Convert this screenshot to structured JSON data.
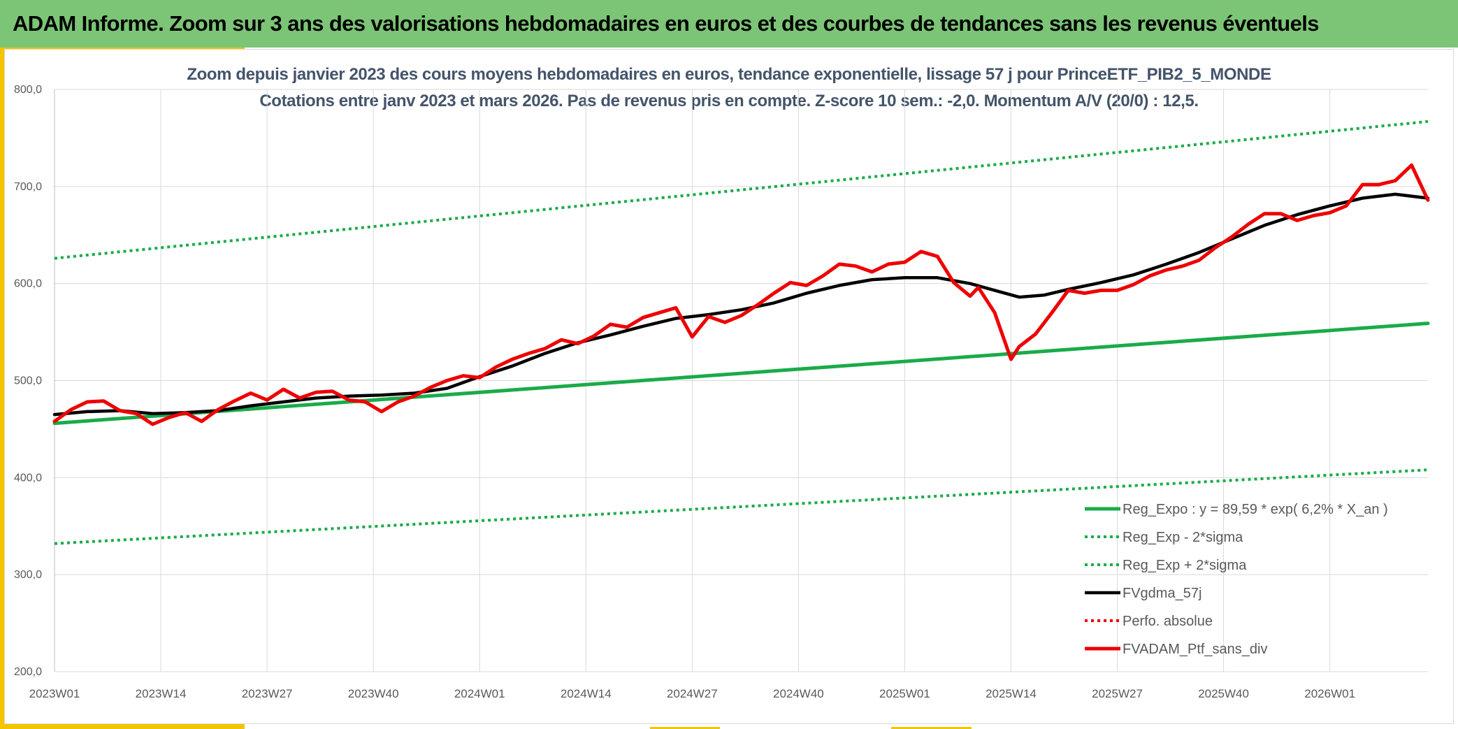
{
  "banner": {
    "title": "ADAM Informe. Zoom sur 3 ans des valorisations hebdomadaires en euros et des courbes de tendances sans les revenus éventuels"
  },
  "colors": {
    "banner_bg": "#7cc576",
    "accent": "#f4c400",
    "trend_green": "#1aab4a",
    "black": "#000000",
    "red": "#ee0000",
    "grid": "#d9d9d9",
    "title_text": "#44546a"
  },
  "chart_data": {
    "type": "line",
    "title": "Zoom depuis janvier 2023 des cours moyens hebdomadaires en euros, tendance exponentielle, lissage 57 j pour PrinceETF_PIB2_5_MONDE",
    "subtitle": "Cotations entre janv 2023 et mars 2026. Pas de revenus pris en compte. Z-score 10 sem.: -2,0. Momentum A/V (20/0) : 12,5.",
    "ylim": [
      200,
      800
    ],
    "y_ticks": [
      "200,0",
      "300,0",
      "400,0",
      "500,0",
      "600,0",
      "700,0",
      "800,0"
    ],
    "x_tick_labels": [
      "2023W01",
      "2023W14",
      "2023W27",
      "2023W40",
      "2024W01",
      "2024W14",
      "2024W27",
      "2024W40",
      "2025W01",
      "2025W14",
      "2025W27",
      "2025W40",
      "2026W01"
    ],
    "x_tick_index": [
      0,
      13,
      26,
      39,
      52,
      65,
      78,
      91,
      104,
      117,
      130,
      143,
      156
    ],
    "x_max_index": 168,
    "grid": true,
    "legend_position": "bottom-right",
    "series": [
      {
        "name": "Reg_Expo : y = 89,59 * exp( 6,2% *  X_an )",
        "style": "solid-green",
        "x": [
          0,
          168
        ],
        "y": [
          456,
          559
        ]
      },
      {
        "name": "Reg_Exp - 2*sigma",
        "style": "dotted-green",
        "x": [
          0,
          168
        ],
        "y": [
          332,
          408
        ]
      },
      {
        "name": "Reg_Exp + 2*sigma",
        "style": "dotted-green",
        "x": [
          0,
          168
        ],
        "y": [
          626,
          767
        ]
      },
      {
        "name": "FVgdma_57j",
        "style": "solid-black",
        "x": [
          0,
          4,
          8,
          12,
          16,
          20,
          24,
          28,
          32,
          36,
          40,
          44,
          48,
          52,
          56,
          60,
          64,
          68,
          72,
          76,
          80,
          84,
          88,
          92,
          96,
          100,
          104,
          108,
          112,
          115,
          118,
          121,
          124,
          128,
          132,
          136,
          140,
          144,
          148,
          152,
          156,
          160,
          164,
          168
        ],
        "y": [
          465,
          468,
          469,
          466,
          467,
          469,
          474,
          478,
          482,
          484,
          485,
          487,
          492,
          504,
          515,
          528,
          539,
          547,
          556,
          564,
          568,
          573,
          580,
          590,
          598,
          604,
          606,
          606,
          600,
          593,
          586,
          588,
          594,
          601,
          609,
          620,
          632,
          646,
          660,
          671,
          680,
          688,
          692,
          688
        ]
      },
      {
        "name": "Perfo. absolue",
        "style": "dotted-red",
        "x": [],
        "y": []
      },
      {
        "name": "FVADAM_Ptf_sans_div",
        "style": "solid-red",
        "x": [
          0,
          2,
          4,
          6,
          8,
          10,
          12,
          14,
          16,
          18,
          20,
          22,
          24,
          26,
          28,
          30,
          32,
          34,
          36,
          38,
          40,
          42,
          44,
          46,
          48,
          50,
          52,
          54,
          56,
          58,
          60,
          62,
          64,
          66,
          68,
          70,
          72,
          74,
          76,
          78,
          80,
          82,
          84,
          86,
          88,
          90,
          92,
          94,
          96,
          98,
          100,
          102,
          104,
          106,
          108,
          110,
          112,
          113,
          115,
          117,
          118,
          120,
          122,
          124,
          126,
          128,
          130,
          132,
          134,
          136,
          138,
          140,
          142,
          144,
          146,
          148,
          150,
          152,
          154,
          156,
          158,
          160,
          162,
          164,
          166,
          168
        ],
        "y": [
          458,
          470,
          478,
          479,
          469,
          466,
          455,
          462,
          467,
          458,
          470,
          479,
          487,
          480,
          491,
          482,
          488,
          489,
          480,
          478,
          468,
          478,
          484,
          493,
          500,
          505,
          503,
          514,
          522,
          528,
          533,
          542,
          538,
          546,
          558,
          555,
          565,
          570,
          575,
          545,
          566,
          560,
          567,
          578,
          590,
          601,
          598,
          608,
          620,
          618,
          612,
          620,
          622,
          633,
          628,
          601,
          587,
          596,
          570,
          522,
          535,
          548,
          570,
          593,
          590,
          593,
          593,
          599,
          608,
          614,
          618,
          624,
          637,
          648,
          661,
          672,
          672,
          665,
          670,
          673,
          680,
          702,
          702,
          706,
          722,
          686
        ]
      }
    ]
  }
}
